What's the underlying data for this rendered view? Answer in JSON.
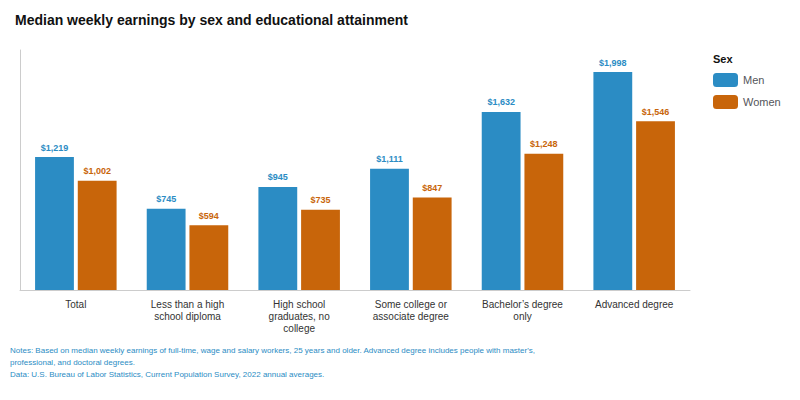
{
  "chart_data": {
    "type": "bar",
    "title": "Median weekly earnings by sex and educational attainment",
    "categories": [
      "Total",
      "Less than a high\nschool diploma",
      "High school\ngraduates, no\ncollege",
      "Some college or\nassociate degree",
      "Bachelor’s degree\nonly",
      "Advanced degree"
    ],
    "series": [
      {
        "name": "Men",
        "color": "#2B8CC4",
        "values": [
          1219,
          745,
          945,
          1111,
          1632,
          1998
        ],
        "value_labels": [
          "$1,219",
          "$745",
          "$945",
          "$1,111",
          "$1,632",
          "$1,998"
        ]
      },
      {
        "name": "Women",
        "color": "#C8650A",
        "values": [
          1002,
          594,
          735,
          847,
          1248,
          1546
        ],
        "value_labels": [
          "$1,002",
          "$594",
          "$735",
          "$847",
          "$1,248",
          "$1,546"
        ]
      }
    ],
    "legend_title": "Sex",
    "legend": "right",
    "ylim": [
      0,
      2200
    ],
    "grid": false,
    "tick_labels": "x",
    "data_labels": true,
    "note": "Notes: Based on median weekly earnings of full-time, wage and salary workers, 25 years and older. Advanced degree includes people with master's,\nprofessional, and doctoral degrees.\nData: U.S. Bureau of Labor Statistics, Current Population Survey, 2022 annual averages."
  }
}
